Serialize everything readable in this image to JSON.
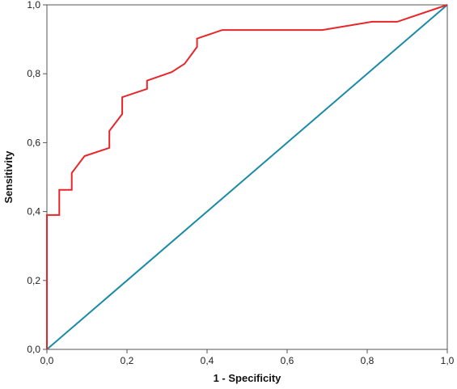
{
  "chart_data": {
    "type": "line",
    "title": "",
    "xlabel": "1 - Specificity",
    "ylabel": "Sensitivity",
    "xlim": [
      0,
      1
    ],
    "ylim": [
      0,
      1
    ],
    "x_ticks": [
      0,
      0.2,
      0.4,
      0.6,
      0.8,
      1.0
    ],
    "y_ticks": [
      0,
      0.2,
      0.4,
      0.6,
      0.8,
      1.0
    ],
    "x_tick_labels": [
      "0,0",
      "0,2",
      "0,4",
      "0,6",
      "0,8",
      "1,0"
    ],
    "y_tick_labels": [
      "0,0",
      "0,2",
      "0,4",
      "0,6",
      "0,8",
      "1,0"
    ],
    "grid": false,
    "series": [
      {
        "color": "#e8262a",
        "points": [
          [
            0.0,
            0.0
          ],
          [
            0.0,
            0.39
          ],
          [
            0.031,
            0.39
          ],
          [
            0.031,
            0.463
          ],
          [
            0.062,
            0.463
          ],
          [
            0.062,
            0.512
          ],
          [
            0.094,
            0.561
          ],
          [
            0.156,
            0.585
          ],
          [
            0.156,
            0.634
          ],
          [
            0.188,
            0.683
          ],
          [
            0.188,
            0.732
          ],
          [
            0.25,
            0.756
          ],
          [
            0.25,
            0.78
          ],
          [
            0.312,
            0.805
          ],
          [
            0.344,
            0.829
          ],
          [
            0.375,
            0.878
          ],
          [
            0.375,
            0.902
          ],
          [
            0.438,
            0.927
          ],
          [
            0.688,
            0.927
          ],
          [
            0.812,
            0.951
          ],
          [
            0.875,
            0.951
          ],
          [
            1.0,
            1.0
          ]
        ]
      },
      {
        "color": "#1b8aa6",
        "points": [
          [
            0.0,
            0.0
          ],
          [
            1.0,
            1.0
          ]
        ]
      }
    ]
  }
}
